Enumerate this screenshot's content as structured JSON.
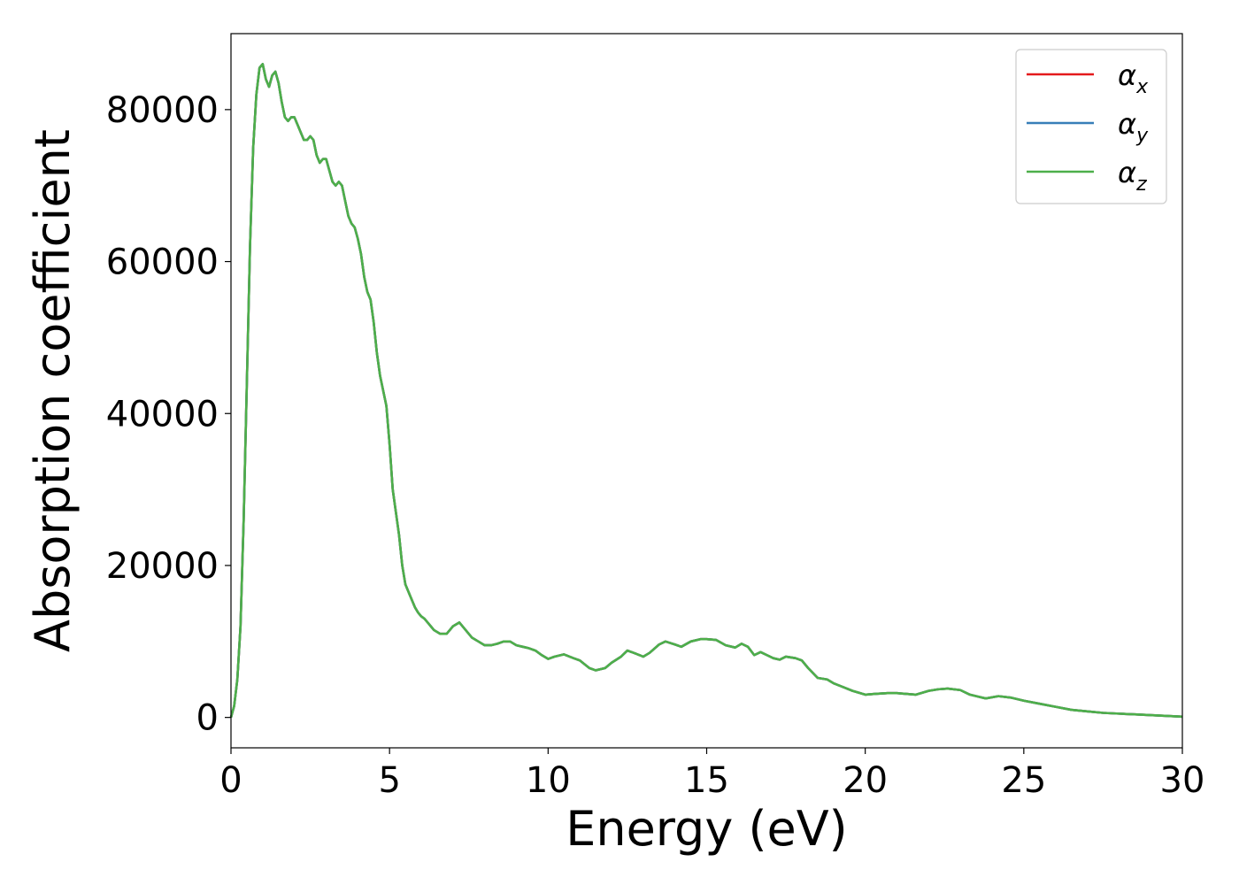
{
  "chart_data": {
    "type": "line",
    "xlabel": "Energy (eV)",
    "ylabel": "Absorption coefficient",
    "xlim": [
      0,
      30
    ],
    "ylim": [
      -4000,
      90000
    ],
    "xticks": [
      0,
      5,
      10,
      15,
      20,
      25,
      30
    ],
    "yticks": [
      0,
      20000,
      40000,
      60000,
      80000
    ],
    "grid": false,
    "legend_position": "top-right",
    "series": [
      {
        "name": "α",
        "subscript": "x",
        "color": "#e41a1c",
        "x": [
          0,
          0.1,
          0.2,
          0.3,
          0.4,
          0.5,
          0.6,
          0.7,
          0.8,
          0.9,
          1.0,
          1.05,
          1.1,
          1.2,
          1.3,
          1.4,
          1.5,
          1.6,
          1.7,
          1.8,
          1.9,
          2.0,
          2.1,
          2.2,
          2.3,
          2.4,
          2.5,
          2.6,
          2.7,
          2.8,
          2.9,
          3.0,
          3.1,
          3.2,
          3.3,
          3.4,
          3.5,
          3.6,
          3.7,
          3.8,
          3.9,
          4.0,
          4.1,
          4.2,
          4.3,
          4.4,
          4.5,
          4.6,
          4.7,
          4.8,
          4.9,
          5.0,
          5.1,
          5.2,
          5.3,
          5.4,
          5.5,
          5.6,
          5.7,
          5.8,
          5.9,
          6.0,
          6.1,
          6.2,
          6.3,
          6.4,
          6.6,
          6.8,
          7.0,
          7.2,
          7.4,
          7.6,
          7.8,
          8.0,
          8.2,
          8.4,
          8.6,
          8.8,
          9.0,
          9.2,
          9.4,
          9.6,
          9.8,
          10.0,
          10.2,
          10.5,
          10.8,
          11.0,
          11.3,
          11.5,
          11.8,
          12.0,
          12.3,
          12.5,
          12.7,
          13.0,
          13.2,
          13.5,
          13.7,
          14.0,
          14.2,
          14.5,
          14.8,
          15.0,
          15.3,
          15.6,
          15.9,
          16.1,
          16.3,
          16.5,
          16.7,
          16.9,
          17.1,
          17.3,
          17.5,
          17.8,
          18.0,
          18.2,
          18.5,
          18.8,
          19.0,
          19.3,
          19.6,
          20.0,
          20.3,
          20.7,
          21.0,
          21.3,
          21.6,
          22.0,
          22.3,
          22.6,
          23.0,
          23.3,
          23.6,
          23.8,
          24.2,
          24.6,
          25.0,
          25.5,
          26.0,
          26.5,
          27.0,
          27.5,
          28.0,
          28.5,
          29.0,
          29.5,
          30.0
        ],
        "y": [
          0,
          1500,
          5000,
          12000,
          26000,
          44000,
          62000,
          75000,
          82000,
          85500,
          86000,
          85000,
          84000,
          83000,
          84500,
          85000,
          83500,
          81000,
          79000,
          78500,
          79000,
          79000,
          78000,
          77000,
          76000,
          76000,
          76500,
          76000,
          74000,
          73000,
          73500,
          73500,
          72000,
          70500,
          70000,
          70500,
          70000,
          68000,
          66000,
          65000,
          64500,
          63000,
          61000,
          58000,
          56000,
          55000,
          52000,
          48000,
          45000,
          43000,
          41000,
          36000,
          30000,
          27000,
          24000,
          20000,
          17500,
          16500,
          15500,
          14500,
          13800,
          13300,
          13000,
          12500,
          12000,
          11500,
          11000,
          11000,
          12000,
          12500,
          11500,
          10500,
          10000,
          9500,
          9500,
          9700,
          10000,
          10000,
          9500,
          9300,
          9100,
          8800,
          8200,
          7700,
          8000,
          8300,
          7800,
          7500,
          6500,
          6200,
          6500,
          7200,
          8000,
          8800,
          8500,
          8000,
          8500,
          9600,
          10000,
          9600,
          9300,
          10000,
          10300,
          10300,
          10200,
          9500,
          9200,
          9700,
          9300,
          8200,
          8600,
          8200,
          7800,
          7600,
          8000,
          7800,
          7500,
          6500,
          5200,
          5000,
          4500,
          4000,
          3500,
          3000,
          3100,
          3200,
          3200,
          3100,
          3000,
          3500,
          3700,
          3800,
          3600,
          3000,
          2700,
          2500,
          2800,
          2600,
          2200,
          1800,
          1400,
          1000,
          800,
          600,
          500,
          400,
          300,
          200,
          100
        ]
      },
      {
        "name": "α",
        "subscript": "y",
        "color": "#377eb8",
        "x": [
          0,
          0.1,
          0.2,
          0.3,
          0.4,
          0.5,
          0.6,
          0.7,
          0.8,
          0.9,
          1.0,
          1.05,
          1.1,
          1.2,
          1.3,
          1.4,
          1.5,
          1.6,
          1.7,
          1.8,
          1.9,
          2.0,
          2.1,
          2.2,
          2.3,
          2.4,
          2.5,
          2.6,
          2.7,
          2.8,
          2.9,
          3.0,
          3.1,
          3.2,
          3.3,
          3.4,
          3.5,
          3.6,
          3.7,
          3.8,
          3.9,
          4.0,
          4.1,
          4.2,
          4.3,
          4.4,
          4.5,
          4.6,
          4.7,
          4.8,
          4.9,
          5.0,
          5.1,
          5.2,
          5.3,
          5.4,
          5.5,
          5.6,
          5.7,
          5.8,
          5.9,
          6.0,
          6.1,
          6.2,
          6.3,
          6.4,
          6.6,
          6.8,
          7.0,
          7.2,
          7.4,
          7.6,
          7.8,
          8.0,
          8.2,
          8.4,
          8.6,
          8.8,
          9.0,
          9.2,
          9.4,
          9.6,
          9.8,
          10.0,
          10.2,
          10.5,
          10.8,
          11.0,
          11.3,
          11.5,
          11.8,
          12.0,
          12.3,
          12.5,
          12.7,
          13.0,
          13.2,
          13.5,
          13.7,
          14.0,
          14.2,
          14.5,
          14.8,
          15.0,
          15.3,
          15.6,
          15.9,
          16.1,
          16.3,
          16.5,
          16.7,
          16.9,
          17.1,
          17.3,
          17.5,
          17.8,
          18.0,
          18.2,
          18.5,
          18.8,
          19.0,
          19.3,
          19.6,
          20.0,
          20.3,
          20.7,
          21.0,
          21.3,
          21.6,
          22.0,
          22.3,
          22.6,
          23.0,
          23.3,
          23.6,
          23.8,
          24.2,
          24.6,
          25.0,
          25.5,
          26.0,
          26.5,
          27.0,
          27.5,
          28.0,
          28.5,
          29.0,
          29.5,
          30.0
        ],
        "y": [
          0,
          1500,
          5000,
          12000,
          26000,
          44000,
          62000,
          75000,
          82000,
          85500,
          86000,
          85000,
          84000,
          83000,
          84500,
          85000,
          83500,
          81000,
          79000,
          78500,
          79000,
          79000,
          78000,
          77000,
          76000,
          76000,
          76500,
          76000,
          74000,
          73000,
          73500,
          73500,
          72000,
          70500,
          70000,
          70500,
          70000,
          68000,
          66000,
          65000,
          64500,
          63000,
          61000,
          58000,
          56000,
          55000,
          52000,
          48000,
          45000,
          43000,
          41000,
          36000,
          30000,
          27000,
          24000,
          20000,
          17500,
          16500,
          15500,
          14500,
          13800,
          13300,
          13000,
          12500,
          12000,
          11500,
          11000,
          11000,
          12000,
          12500,
          11500,
          10500,
          10000,
          9500,
          9500,
          9700,
          10000,
          10000,
          9500,
          9300,
          9100,
          8800,
          8200,
          7700,
          8000,
          8300,
          7800,
          7500,
          6500,
          6200,
          6500,
          7200,
          8000,
          8800,
          8500,
          8000,
          8500,
          9600,
          10000,
          9600,
          9300,
          10000,
          10300,
          10300,
          10200,
          9500,
          9200,
          9700,
          9300,
          8200,
          8600,
          8200,
          7800,
          7600,
          8000,
          7800,
          7500,
          6500,
          5200,
          5000,
          4500,
          4000,
          3500,
          3000,
          3100,
          3200,
          3200,
          3100,
          3000,
          3500,
          3700,
          3800,
          3600,
          3000,
          2700,
          2500,
          2800,
          2600,
          2200,
          1800,
          1400,
          1000,
          800,
          600,
          500,
          400,
          300,
          200,
          100
        ]
      },
      {
        "name": "α",
        "subscript": "z",
        "color": "#4daf4a",
        "x": [
          0,
          0.1,
          0.2,
          0.3,
          0.4,
          0.5,
          0.6,
          0.7,
          0.8,
          0.9,
          1.0,
          1.05,
          1.1,
          1.2,
          1.3,
          1.4,
          1.5,
          1.6,
          1.7,
          1.8,
          1.9,
          2.0,
          2.1,
          2.2,
          2.3,
          2.4,
          2.5,
          2.6,
          2.7,
          2.8,
          2.9,
          3.0,
          3.1,
          3.2,
          3.3,
          3.4,
          3.5,
          3.6,
          3.7,
          3.8,
          3.9,
          4.0,
          4.1,
          4.2,
          4.3,
          4.4,
          4.5,
          4.6,
          4.7,
          4.8,
          4.9,
          5.0,
          5.1,
          5.2,
          5.3,
          5.4,
          5.5,
          5.6,
          5.7,
          5.8,
          5.9,
          6.0,
          6.1,
          6.2,
          6.3,
          6.4,
          6.6,
          6.8,
          7.0,
          7.2,
          7.4,
          7.6,
          7.8,
          8.0,
          8.2,
          8.4,
          8.6,
          8.8,
          9.0,
          9.2,
          9.4,
          9.6,
          9.8,
          10.0,
          10.2,
          10.5,
          10.8,
          11.0,
          11.3,
          11.5,
          11.8,
          12.0,
          12.3,
          12.5,
          12.7,
          13.0,
          13.2,
          13.5,
          13.7,
          14.0,
          14.2,
          14.5,
          14.8,
          15.0,
          15.3,
          15.6,
          15.9,
          16.1,
          16.3,
          16.5,
          16.7,
          16.9,
          17.1,
          17.3,
          17.5,
          17.8,
          18.0,
          18.2,
          18.5,
          18.8,
          19.0,
          19.3,
          19.6,
          20.0,
          20.3,
          20.7,
          21.0,
          21.3,
          21.6,
          22.0,
          22.3,
          22.6,
          23.0,
          23.3,
          23.6,
          23.8,
          24.2,
          24.6,
          25.0,
          25.5,
          26.0,
          26.5,
          27.0,
          27.5,
          28.0,
          28.5,
          29.0,
          29.5,
          30.0
        ],
        "y": [
          0,
          1500,
          5000,
          12000,
          26000,
          44000,
          62000,
          75000,
          82000,
          85500,
          86000,
          85000,
          84000,
          83000,
          84500,
          85000,
          83500,
          81000,
          79000,
          78500,
          79000,
          79000,
          78000,
          77000,
          76000,
          76000,
          76500,
          76000,
          74000,
          73000,
          73500,
          73500,
          72000,
          70500,
          70000,
          70500,
          70000,
          68000,
          66000,
          65000,
          64500,
          63000,
          61000,
          58000,
          56000,
          55000,
          52000,
          48000,
          45000,
          43000,
          41000,
          36000,
          30000,
          27000,
          24000,
          20000,
          17500,
          16500,
          15500,
          14500,
          13800,
          13300,
          13000,
          12500,
          12000,
          11500,
          11000,
          11000,
          12000,
          12500,
          11500,
          10500,
          10000,
          9500,
          9500,
          9700,
          10000,
          10000,
          9500,
          9300,
          9100,
          8800,
          8200,
          7700,
          8000,
          8300,
          7800,
          7500,
          6500,
          6200,
          6500,
          7200,
          8000,
          8800,
          8500,
          8000,
          8500,
          9600,
          10000,
          9600,
          9300,
          10000,
          10300,
          10300,
          10200,
          9500,
          9200,
          9700,
          9300,
          8200,
          8600,
          8200,
          7800,
          7600,
          8000,
          7800,
          7500,
          6500,
          5200,
          5000,
          4500,
          4000,
          3500,
          3000,
          3100,
          3200,
          3200,
          3100,
          3000,
          3500,
          3700,
          3800,
          3600,
          3000,
          2700,
          2500,
          2800,
          2600,
          2200,
          1800,
          1400,
          1000,
          800,
          600,
          500,
          400,
          300,
          200,
          100
        ]
      }
    ]
  }
}
